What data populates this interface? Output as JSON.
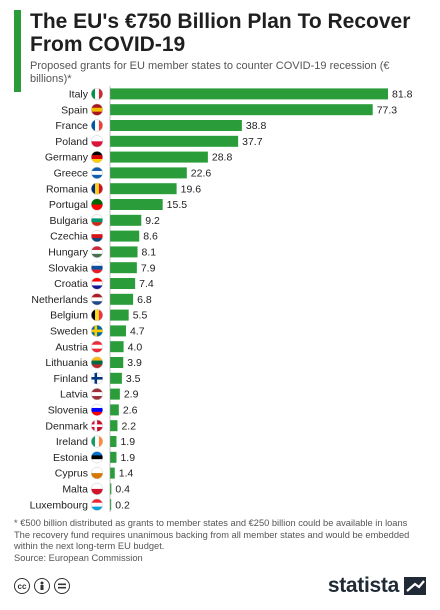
{
  "header": {
    "title": "The EU's €750 Billion Plan To Recover From COVID-19",
    "subtitle": "Proposed grants for EU member states to counter COVID-19 recession (€ billions)*"
  },
  "colors": {
    "accent": "#2a9d3a",
    "bar": "#2a9d3a"
  },
  "chart_data": {
    "type": "bar",
    "orientation": "horizontal",
    "categories": [
      "Italy",
      "Spain",
      "France",
      "Poland",
      "Germany",
      "Greece",
      "Romania",
      "Portugal",
      "Bulgaria",
      "Czechia",
      "Hungary",
      "Slovakia",
      "Croatia",
      "Netherlands",
      "Belgium",
      "Sweden",
      "Austria",
      "Lithuania",
      "Finland",
      "Latvia",
      "Slovenia",
      "Denmark",
      "Ireland",
      "Estonia",
      "Cyprus",
      "Malta",
      "Luxembourg"
    ],
    "values": [
      81.8,
      77.3,
      38.8,
      37.7,
      28.8,
      22.6,
      19.6,
      15.5,
      9.2,
      8.6,
      8.1,
      7.9,
      7.4,
      6.8,
      5.5,
      4.7,
      4.0,
      3.9,
      3.5,
      2.9,
      2.6,
      2.2,
      1.9,
      1.9,
      1.4,
      0.4,
      0.2
    ],
    "value_labels": [
      "81.8",
      "77.3",
      "38.8",
      "37.7",
      "28.8",
      "22.6",
      "19.6",
      "15.5",
      "9.2",
      "8.6",
      "8.1",
      "7.9",
      "7.4",
      "6.8",
      "5.5",
      "4.7",
      "4.0",
      "3.9",
      "3.5",
      "2.9",
      "2.6",
      "2.2",
      "1.9",
      "1.9",
      "1.4",
      "0.4",
      "0.2"
    ],
    "flags": [
      "italy-flag-icon",
      "spain-flag-icon",
      "france-flag-icon",
      "poland-flag-icon",
      "germany-flag-icon",
      "greece-flag-icon",
      "romania-flag-icon",
      "portugal-flag-icon",
      "bulgaria-flag-icon",
      "czechia-flag-icon",
      "hungary-flag-icon",
      "slovakia-flag-icon",
      "croatia-flag-icon",
      "netherlands-flag-icon",
      "belgium-flag-icon",
      "sweden-flag-icon",
      "austria-flag-icon",
      "lithuania-flag-icon",
      "finland-flag-icon",
      "latvia-flag-icon",
      "slovenia-flag-icon",
      "denmark-flag-icon",
      "ireland-flag-icon",
      "estonia-flag-icon",
      "cyprus-flag-icon",
      "malta-flag-icon",
      "luxembourg-flag-icon"
    ],
    "xlim": [
      0,
      81.8
    ],
    "grid": false,
    "legend": "none"
  },
  "footer": {
    "note1": "* €500 billion distributed as grants to member states and €250 billion could be available in loans",
    "note2": "The recovery fund requires unanimous backing from all member states and would be embedded within the next long-term EU budget.",
    "source": "Source: European Commission",
    "license_icons": [
      "cc-icon",
      "attribution-icon",
      "no-derivatives-icon"
    ],
    "brand": "statista"
  }
}
